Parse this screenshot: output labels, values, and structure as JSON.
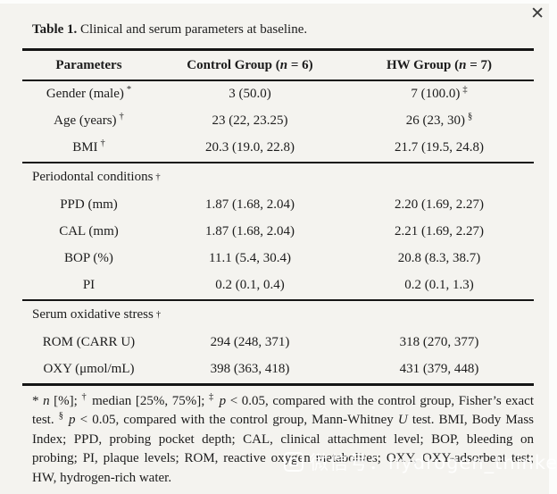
{
  "window": {
    "close_glyph": "✕"
  },
  "colors": {
    "page_background": "#f4f3ef",
    "text": "#1c1c1c",
    "rule": "#151515",
    "close_icon": "#3c3c3c"
  },
  "table": {
    "title": {
      "bold": "Table 1.",
      "rest": " Clinical and serum parameters at baseline."
    },
    "header": {
      "col1": "Parameters",
      "col2": {
        "pre": "Control Group (",
        "n": "n",
        "post": " = 6)"
      },
      "col3": {
        "pre": "HW Group (",
        "n": "n",
        "post": " = 7)"
      }
    },
    "sections": [
      {
        "rows": [
          {
            "param": "Gender (male)",
            "param_sup": "*",
            "control": "3 (50.0)",
            "hw": "7 (100.0)",
            "hw_sup": "‡"
          },
          {
            "param": "Age (years)",
            "param_sup": "†",
            "control": "23 (22, 23.25)",
            "hw": "26 (23, 30)",
            "hw_sup": "§"
          },
          {
            "param": "BMI",
            "param_sup": "†",
            "control": "20.3 (19.0, 22.8)",
            "hw": "21.7 (19.5, 24.8)"
          }
        ]
      },
      {
        "label": "Periodontal conditions",
        "label_sup": "†",
        "rows": [
          {
            "param": "PPD (mm)",
            "control": "1.87 (1.68, 2.04)",
            "hw": "2.20 (1.69, 2.27)"
          },
          {
            "param": "CAL (mm)",
            "control": "1.87 (1.68, 2.04)",
            "hw": "2.21 (1.69, 2.27)"
          },
          {
            "param": "BOP (%)",
            "control": "11.1 (5.4, 30.4)",
            "hw": "20.8 (8.3, 38.7)"
          },
          {
            "param": "PI",
            "control": "0.2 (0.1, 0.4)",
            "hw": "0.2 (0.1, 1.3)"
          }
        ]
      },
      {
        "label": "Serum oxidative stress",
        "label_sup": "†",
        "rows": [
          {
            "param": "ROM (CARR U)",
            "control": "294 (248, 371)",
            "hw": "318 (270, 377)"
          },
          {
            "param": "OXY (μmol/mL)",
            "control": "398 (363, 418)",
            "hw": "431 (379, 448)"
          }
        ]
      }
    ]
  },
  "footnote": {
    "segments": [
      {
        "text": "* ",
        "style": ""
      },
      {
        "text": "n",
        "style": "i"
      },
      {
        "text": " [%]; ",
        "style": ""
      },
      {
        "text": "†",
        "style": "sup"
      },
      {
        "text": " median [25%, 75%]; ",
        "style": ""
      },
      {
        "text": "‡",
        "style": "sup"
      },
      {
        "text": " ",
        "style": ""
      },
      {
        "text": "p",
        "style": "i"
      },
      {
        "text": " < 0.05, compared with the control group, Fisher’s exact test. ",
        "style": ""
      },
      {
        "text": "§",
        "style": "sup"
      },
      {
        "text": " ",
        "style": ""
      },
      {
        "text": "p",
        "style": "i"
      },
      {
        "text": " < 0.05, compared with the control group, Mann-Whitney ",
        "style": ""
      },
      {
        "text": "U",
        "style": "i"
      },
      {
        "text": " test. BMI, Body Mass Index; PPD, probing pocket depth; CAL, clinical attachment level; BOP, bleeding on probing; PI, plaque levels; ROM, reactive oxygen metabolites; OXY, OXY-adsorbent test; HW, hydrogen-rich water.",
        "style": ""
      }
    ]
  },
  "watermark": {
    "icon": "wechat-watermark-icon",
    "text": "微信号：hydrogen_thinker"
  }
}
